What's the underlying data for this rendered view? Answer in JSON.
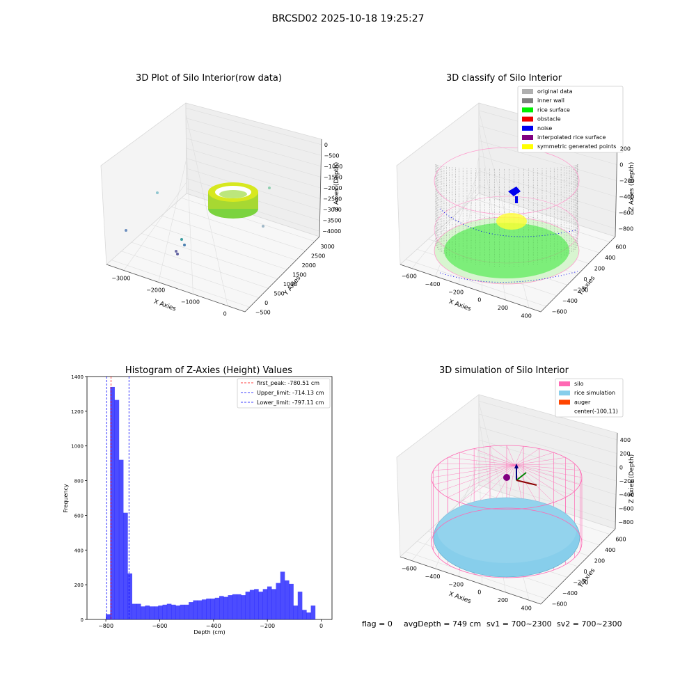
{
  "suptitle": "BRCSD02 2025-10-18 19:25:27",
  "panels": {
    "raw": {
      "title": "3D Plot of Silo Interior(row data)",
      "xlabel": "X Axies",
      "ylabel": "Y Axies",
      "zlabel": "Z Axies (Depth)",
      "xticks": [
        "−3000",
        "−2000",
        "−1000",
        "0"
      ],
      "yticks": [
        "−500",
        "0",
        "500",
        "1000",
        "1500",
        "2000",
        "2500",
        "3000"
      ],
      "zticks": [
        "0",
        "−500",
        "−1000",
        "−1500",
        "−2000",
        "−2500",
        "−3000",
        "−3500",
        "−4000"
      ]
    },
    "classify": {
      "title": "3D classify of Silo Interior",
      "xlabel": "X Axies",
      "ylabel": "Y Axies",
      "zlabel": "Z Axies (Depth)",
      "xticks": [
        "−600",
        "−400",
        "−200",
        "0",
        "200",
        "400"
      ],
      "yticks": [
        "−600",
        "−400",
        "−200",
        "0",
        "200",
        "400",
        "600"
      ],
      "zticks": [
        "200",
        "0",
        "−200",
        "−400",
        "−600",
        "−800"
      ],
      "legend": [
        {
          "label": "original data",
          "color": "#b0b0b0"
        },
        {
          "label": "inner wall",
          "color": "#808080"
        },
        {
          "label": "rice surface",
          "color": "#00ee00"
        },
        {
          "label": "obstacle",
          "color": "#ee0000"
        },
        {
          "label": "noise",
          "color": "#0000ee"
        },
        {
          "label": "interpolated rice surface",
          "color": "#800080"
        },
        {
          "label": "symmetric generated points",
          "color": "#ffff00"
        }
      ]
    },
    "simulation": {
      "title": "3D simulation of Silo Interior",
      "xlabel": "X Axies",
      "ylabel": "Y Axies",
      "zlabel": "Z Axies (Depth)",
      "xticks": [
        "−600",
        "−400",
        "−200",
        "0",
        "200",
        "400"
      ],
      "yticks": [
        "−600",
        "−400",
        "−200",
        "0",
        "200",
        "400",
        "600"
      ],
      "zticks": [
        "400",
        "200",
        "0",
        "−200",
        "−400",
        "−600",
        "−800"
      ],
      "legend": [
        {
          "label": "silo",
          "color": "#ff69b4"
        },
        {
          "label": "rice simulation",
          "color": "#87ceeb"
        },
        {
          "label": "auger",
          "color": "#ff4500"
        },
        {
          "label": "center(-100,11)",
          "color": ""
        }
      ]
    }
  },
  "status_text": {
    "flag": "flag = 0",
    "avg": "avgDepth = 749 cm",
    "sv1": "sv1 = 700~2300",
    "sv2": "sv2 = 700~2300"
  },
  "chart_data": [
    {
      "type": "bar",
      "title": "Histogram of Z-Axies (Height) Values",
      "xlabel": "Depth (cm)",
      "ylabel": "Frequency",
      "xlim": [
        -870,
        40
      ],
      "ylim": [
        0,
        1400
      ],
      "xticks": [
        -800,
        -600,
        -400,
        -200,
        0
      ],
      "yticks": [
        0,
        200,
        400,
        600,
        800,
        1000,
        1200,
        1400
      ],
      "bin_start": -800,
      "bin_width": 16.2,
      "values": [
        30,
        1340,
        1265,
        920,
        615,
        265,
        90,
        90,
        75,
        80,
        75,
        75,
        80,
        85,
        90,
        85,
        80,
        85,
        85,
        100,
        110,
        110,
        115,
        120,
        120,
        125,
        135,
        130,
        140,
        145,
        145,
        140,
        160,
        170,
        175,
        160,
        175,
        190,
        175,
        210,
        275,
        225,
        205,
        80,
        160,
        55,
        40,
        80
      ],
      "bar_color": "#0000ff",
      "vlines": [
        {
          "label": "first_peak: -780.51 cm",
          "x": -780.51,
          "color": "#ff0000"
        },
        {
          "label": "Upper_limit: -714.13 cm",
          "x": -714.13,
          "color": "#0000ff"
        },
        {
          "label": "Lower_limit: -797.11 cm",
          "x": -797.11,
          "color": "#0000ff"
        }
      ],
      "legend_position": "top-right"
    }
  ]
}
